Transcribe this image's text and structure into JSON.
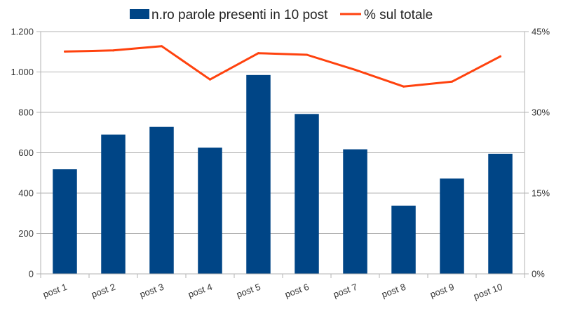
{
  "chart_data": {
    "type": "bar",
    "categories": [
      "post 1",
      "post 2",
      "post 3",
      "post 4",
      "post 5",
      "post 6",
      "post 7",
      "post 8",
      "post 9",
      "post 10"
    ],
    "series": [
      {
        "name": "n.ro parole presenti in 10 post",
        "type": "bar",
        "axis": "left",
        "color": "#004586",
        "values": [
          518,
          690,
          728,
          625,
          985,
          792,
          617,
          338,
          472,
          595
        ]
      },
      {
        "name": "% sul totale",
        "type": "line",
        "axis": "right",
        "color": "#ff420e",
        "values": [
          41.3,
          41.5,
          42.3,
          36.1,
          41.0,
          40.7,
          37.9,
          34.8,
          35.7,
          40.4
        ]
      }
    ],
    "y_left": {
      "range": [
        0,
        1200
      ],
      "ticks": [
        0,
        200,
        400,
        600,
        800,
        1000,
        1200
      ],
      "tick_labels": [
        "0",
        "200",
        "400",
        "600",
        "800",
        "1.000",
        "1.200"
      ]
    },
    "y_right": {
      "range": [
        0,
        45
      ],
      "ticks": [
        0,
        15,
        30,
        45
      ],
      "tick_labels": [
        "0%",
        "15%",
        "30%",
        "45%"
      ]
    },
    "title": "",
    "xlabel": "",
    "ylabel": "",
    "grid": "horizontal",
    "legend": "top-center"
  }
}
